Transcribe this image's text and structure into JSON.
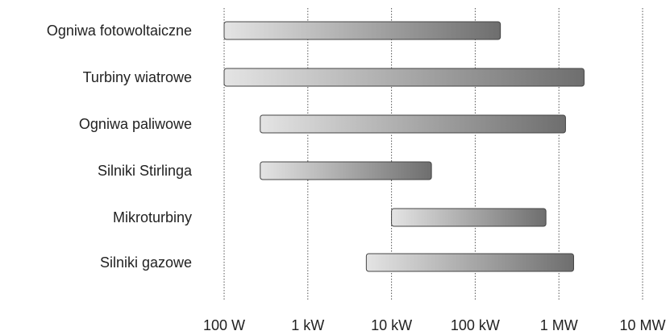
{
  "chart_data": {
    "type": "bar",
    "orientation": "horizontal",
    "title": "",
    "xlabel": "",
    "ylabel": "",
    "x_scale": "log",
    "xlim": [
      100,
      10000000
    ],
    "grid": true,
    "categories": [
      "Ogniwa fotowoltaiczne",
      "Turbiny wiatrowe",
      "Ogniwa paliwowe",
      "Silniki Stirlinga",
      "Mikroturbiny",
      "Silniki gazowe"
    ],
    "x_ticks": [
      {
        "value": 100,
        "label": "100 W"
      },
      {
        "value": 1000,
        "label": "1 kW"
      },
      {
        "value": 10000,
        "label": "10 kW"
      },
      {
        "value": 100000,
        "label": "100 kW"
      },
      {
        "value": 1000000,
        "label": "1 MW"
      },
      {
        "value": 10000000,
        "label": "10 MW"
      }
    ],
    "ranges": [
      {
        "start": 100,
        "end": 200000
      },
      {
        "start": 100,
        "end": 2000000
      },
      {
        "start": 270,
        "end": 1200000
      },
      {
        "start": 270,
        "end": 30000
      },
      {
        "start": 10000,
        "end": 700000
      },
      {
        "start": 5000,
        "end": 1500000
      }
    ],
    "colors": {
      "bar_light": "#e4e4e4",
      "bar_dark": "#6e6e6e",
      "bar_stroke": "#444444",
      "grid": "#555555"
    }
  }
}
